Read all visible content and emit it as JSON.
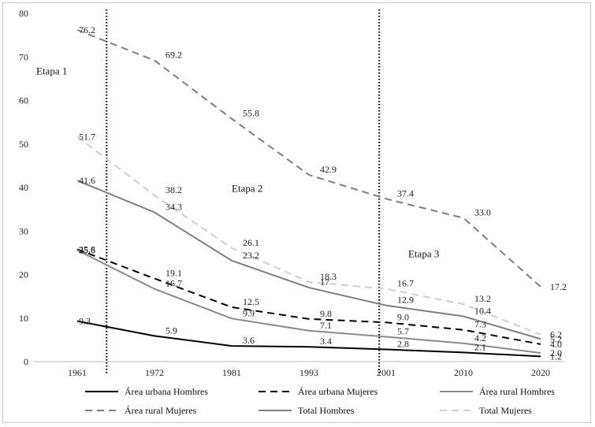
{
  "chart_data": {
    "type": "line",
    "title": "",
    "xlabel": "",
    "ylabel": "",
    "x": [
      "1961",
      "1972",
      "1981",
      "1993",
      "2001",
      "2010",
      "2020"
    ],
    "ylim": [
      0,
      80
    ],
    "yticks": [
      "0",
      "10",
      "20",
      "30",
      "40",
      "50",
      "60",
      "70",
      "80"
    ],
    "grid": false,
    "legend_position": "bottom",
    "series": [
      {
        "name": "Área urbana Hombres",
        "values": [
          9.3,
          5.9,
          3.6,
          3.4,
          2.8,
          2.1,
          1.2
        ],
        "labels": [
          "9.3",
          "5.9",
          "3.6",
          "3.4",
          "2.8",
          "2.1",
          "1.2"
        ],
        "color": "#000000",
        "dash": "solid",
        "width": 2
      },
      {
        "name": "Área urbana Mujeres",
        "values": [
          25.8,
          19.1,
          12.5,
          9.8,
          9.0,
          7.3,
          4.0
        ],
        "labels": [
          "25.8",
          "19.1",
          "12.5",
          "9.8",
          "9.0",
          "7.3",
          "4.0"
        ],
        "color": "#000000",
        "dash": "dashed",
        "width": 2
      },
      {
        "name": "Área rural Hombres",
        "values": [
          25.6,
          16.7,
          9.9,
          7.1,
          5.7,
          4.2,
          2.0
        ],
        "labels": [
          "25.6",
          "16.7",
          "9.9",
          "7.1",
          "5.7",
          "4.2",
          "2.0"
        ],
        "color": "#8a8a8a",
        "dash": "solid",
        "width": 2
      },
      {
        "name": "Área rural Mujeres",
        "values": [
          76.2,
          69.2,
          55.8,
          42.9,
          37.4,
          33.0,
          17.2
        ],
        "labels": [
          "76.2",
          "69.2",
          "55.8",
          "42.9",
          "37.4",
          "33.0",
          "17.2"
        ],
        "color": "#7f7f7f",
        "dash": "dashed",
        "width": 2
      },
      {
        "name": "Total Hombres",
        "values": [
          41.6,
          34.3,
          23.2,
          17.0,
          12.9,
          10.4,
          5.2
        ],
        "labels": [
          "41.6",
          "34.3",
          "23.2",
          "17",
          "12.9",
          "10.4",
          "5.2"
        ],
        "color": "#7f7f7f",
        "dash": "solid",
        "width": 2
      },
      {
        "name": "Total Mujeres",
        "values": [
          51.7,
          38.2,
          26.1,
          18.3,
          16.7,
          13.2,
          6.2
        ],
        "labels": [
          "51.7",
          "38.2",
          "26.1",
          "18.3",
          "16.7",
          "13.2",
          "6.2"
        ],
        "color": "#d0d0d0",
        "dash": "dashed",
        "width": 2
      }
    ],
    "stage_dividers": [
      {
        "x": "1961",
        "offset": 0.38
      },
      {
        "x": "1993",
        "offset": 0.91
      }
    ],
    "annotations": [
      {
        "text": "Etapa 1",
        "x": "1961",
        "y": 66
      },
      {
        "text": "Etapa 2",
        "x": "1981",
        "y": 39
      },
      {
        "text": "Etapa 3",
        "x": "2010",
        "y": 24
      }
    ]
  }
}
